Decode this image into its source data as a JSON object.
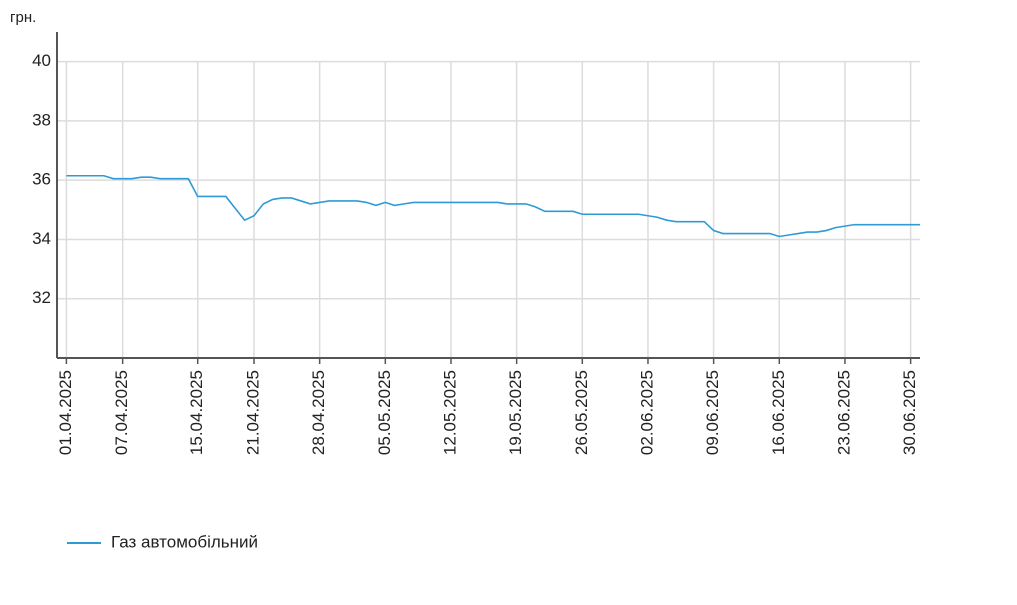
{
  "chart_data": {
    "type": "line",
    "y_label": "грн.",
    "x": [
      "01.04.2025",
      "02.04.2025",
      "03.04.2025",
      "04.04.2025",
      "05.04.2025",
      "06.04.2025",
      "07.04.2025",
      "08.04.2025",
      "09.04.2025",
      "10.04.2025",
      "11.04.2025",
      "12.04.2025",
      "13.04.2025",
      "14.04.2025",
      "15.04.2025",
      "16.04.2025",
      "17.04.2025",
      "18.04.2025",
      "19.04.2025",
      "20.04.2025",
      "21.04.2025",
      "22.04.2025",
      "23.04.2025",
      "24.04.2025",
      "25.04.2025",
      "26.04.2025",
      "27.04.2025",
      "28.04.2025",
      "29.04.2025",
      "30.04.2025",
      "01.05.2025",
      "02.05.2025",
      "03.05.2025",
      "04.05.2025",
      "05.05.2025",
      "06.05.2025",
      "07.05.2025",
      "08.05.2025",
      "09.05.2025",
      "10.05.2025",
      "11.05.2025",
      "12.05.2025",
      "13.05.2025",
      "14.05.2025",
      "15.05.2025",
      "16.05.2025",
      "17.05.2025",
      "18.05.2025",
      "19.05.2025",
      "20.05.2025",
      "21.05.2025",
      "22.05.2025",
      "23.05.2025",
      "24.05.2025",
      "25.05.2025",
      "26.05.2025",
      "27.05.2025",
      "28.05.2025",
      "29.05.2025",
      "30.05.2025",
      "31.05.2025",
      "01.06.2025",
      "02.06.2025",
      "03.06.2025",
      "04.06.2025",
      "05.06.2025",
      "06.06.2025",
      "07.06.2025",
      "08.06.2025",
      "09.06.2025",
      "10.06.2025",
      "11.06.2025",
      "12.06.2025",
      "13.06.2025",
      "14.06.2025",
      "15.06.2025",
      "16.06.2025",
      "17.06.2025",
      "18.06.2025",
      "19.06.2025",
      "20.06.2025",
      "21.06.2025",
      "22.06.2025",
      "23.06.2025",
      "24.06.2025",
      "25.06.2025",
      "26.06.2025",
      "27.06.2025",
      "28.06.2025",
      "29.06.2025",
      "30.06.2025",
      "01.07.2025"
    ],
    "series": [
      {
        "name": "Газ автомобільний",
        "color": "#2e9bd6",
        "values": [
          36.15,
          36.15,
          36.15,
          36.15,
          36.15,
          36.05,
          36.05,
          36.05,
          36.1,
          36.1,
          36.05,
          36.05,
          36.05,
          36.05,
          35.45,
          35.45,
          35.45,
          35.45,
          35.05,
          34.65,
          34.8,
          35.2,
          35.35,
          35.4,
          35.4,
          35.3,
          35.2,
          35.25,
          35.3,
          35.3,
          35.3,
          35.3,
          35.25,
          35.15,
          35.25,
          35.15,
          35.2,
          35.25,
          35.25,
          35.25,
          35.25,
          35.25,
          35.25,
          35.25,
          35.25,
          35.25,
          35.25,
          35.2,
          35.2,
          35.2,
          35.1,
          34.95,
          34.95,
          34.95,
          34.95,
          34.85,
          34.85,
          34.85,
          34.85,
          34.85,
          34.85,
          34.85,
          34.8,
          34.75,
          34.65,
          34.6,
          34.6,
          34.6,
          34.6,
          34.3,
          34.2,
          34.2,
          34.2,
          34.2,
          34.2,
          34.2,
          34.1,
          34.15,
          34.2,
          34.25,
          34.25,
          34.3,
          34.4,
          34.45,
          34.5,
          34.5,
          34.5,
          34.5,
          34.5,
          34.5,
          34.5,
          34.5
        ]
      }
    ],
    "xlim": [
      "31.03.2025",
      "01.07.2025"
    ],
    "xticks": [
      "01.04.2025",
      "07.04.2025",
      "15.04.2025",
      "21.04.2025",
      "28.04.2025",
      "05.05.2025",
      "12.05.2025",
      "19.05.2025",
      "26.05.2025",
      "02.06.2025",
      "09.06.2025",
      "16.06.2025",
      "23.06.2025",
      "30.06.2025"
    ],
    "ylim": [
      30,
      41
    ],
    "yticks": [
      32,
      34,
      36,
      38,
      40
    ],
    "grid": true,
    "legend": "bottom"
  }
}
